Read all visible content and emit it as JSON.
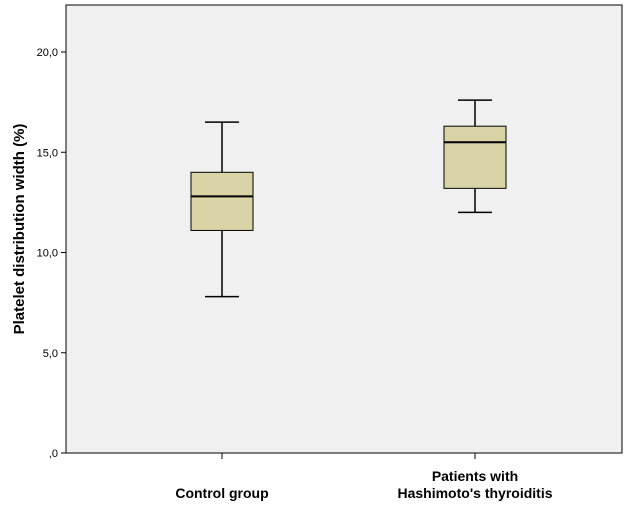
{
  "chart_data": {
    "type": "boxplot",
    "title": "",
    "xlabel": "",
    "ylabel": "Platelet distribution width (%)",
    "ylim": [
      0,
      22
    ],
    "yticks": [
      0,
      5,
      10,
      15,
      20
    ],
    "ytick_labels": [
      ",0",
      "5,0",
      "10,0",
      "15,0",
      "20,0"
    ],
    "grid": false,
    "legend": "none",
    "plot_background": "#f0f0f0",
    "box_fill": "#d9d3a6",
    "categories": [
      {
        "lines": [
          "Control group"
        ]
      },
      {
        "lines": [
          "Patients with",
          "Hashimoto's thyroiditis"
        ]
      }
    ],
    "boxes": [
      {
        "min": 7.8,
        "q1": 11.1,
        "median": 12.8,
        "q3": 14.0,
        "max": 16.5
      },
      {
        "min": 12.0,
        "q1": 13.2,
        "median": 15.5,
        "q3": 16.3,
        "max": 17.6
      }
    ]
  }
}
